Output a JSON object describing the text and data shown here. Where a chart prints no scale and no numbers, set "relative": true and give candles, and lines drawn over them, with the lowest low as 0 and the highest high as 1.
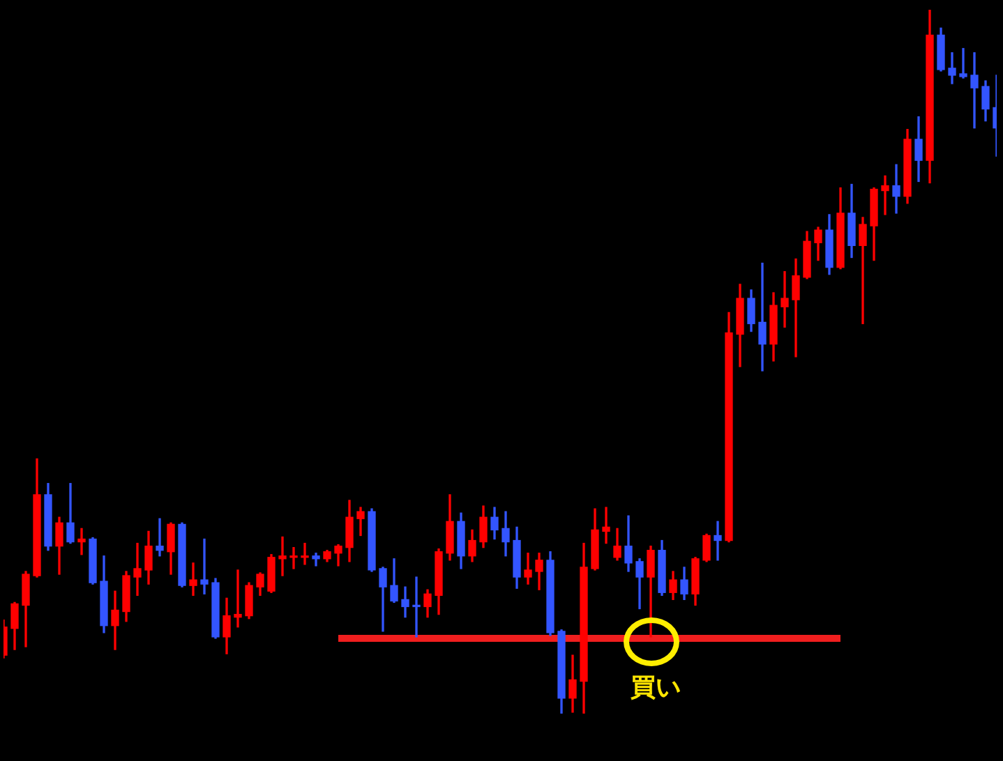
{
  "chart_data": {
    "type": "candlestick",
    "relative": true,
    "categories": [
      null,
      null,
      null,
      null,
      null,
      null,
      null,
      null,
      null,
      null,
      null,
      null,
      null,
      null,
      null,
      null,
      null,
      null,
      null,
      null,
      null,
      null,
      null,
      null,
      null,
      null,
      null,
      null,
      null,
      null,
      null,
      null,
      null,
      null,
      null,
      null,
      null,
      null,
      null,
      null,
      null,
      null,
      null,
      null,
      null,
      null,
      null,
      null,
      null,
      null,
      null,
      null,
      null,
      null,
      null,
      null,
      null,
      null,
      null,
      null,
      null,
      null,
      null,
      null,
      null,
      null,
      null,
      null,
      null,
      null,
      null,
      null,
      null,
      null,
      null,
      null,
      null,
      null,
      null,
      null,
      null,
      null,
      null,
      null,
      null,
      null,
      null,
      null,
      null,
      null
    ],
    "ohlc": [
      [
        0.083,
        0.133,
        0.079,
        0.123
      ],
      [
        0.121,
        0.158,
        0.091,
        0.156
      ],
      [
        0.154,
        0.202,
        0.095,
        0.198
      ],
      [
        0.196,
        0.362,
        0.194,
        0.311
      ],
      [
        0.311,
        0.327,
        0.232,
        0.238
      ],
      [
        0.238,
        0.279,
        0.198,
        0.271
      ],
      [
        0.271,
        0.327,
        0.242,
        0.244
      ],
      [
        0.244,
        0.263,
        0.226,
        0.248
      ],
      [
        0.248,
        0.25,
        0.184,
        0.186
      ],
      [
        0.188,
        0.224,
        0.115,
        0.125
      ],
      [
        0.125,
        0.174,
        0.091,
        0.147
      ],
      [
        0.145,
        0.202,
        0.131,
        0.196
      ],
      [
        0.194,
        0.242,
        0.168,
        0.206
      ],
      [
        0.204,
        0.259,
        0.184,
        0.238
      ],
      [
        0.238,
        0.277,
        0.224,
        0.232
      ],
      [
        0.23,
        0.271,
        0.198,
        0.269
      ],
      [
        0.269,
        0.271,
        0.18,
        0.182
      ],
      [
        0.182,
        0.214,
        0.168,
        0.19
      ],
      [
        0.19,
        0.248,
        0.17,
        0.184
      ],
      [
        0.186,
        0.192,
        0.107,
        0.109
      ],
      [
        0.109,
        0.164,
        0.085,
        0.139
      ],
      [
        0.137,
        0.204,
        0.123,
        0.141
      ],
      [
        0.139,
        0.186,
        0.135,
        0.182
      ],
      [
        0.18,
        0.2,
        0.168,
        0.198
      ],
      [
        0.174,
        0.226,
        0.172,
        0.222
      ],
      [
        0.22,
        0.251,
        0.196,
        0.224
      ],
      [
        0.222,
        0.236,
        0.206,
        0.224
      ],
      [
        0.222,
        0.242,
        0.212,
        0.224
      ],
      [
        0.224,
        0.228,
        0.21,
        0.22
      ],
      [
        0.22,
        0.232,
        0.216,
        0.23
      ],
      [
        0.228,
        0.24,
        0.21,
        0.238
      ],
      [
        0.236,
        0.303,
        0.216,
        0.279
      ],
      [
        0.277,
        0.293,
        0.253,
        0.287
      ],
      [
        0.287,
        0.291,
        0.202,
        0.204
      ],
      [
        0.206,
        0.208,
        0.117,
        0.18
      ],
      [
        0.182,
        0.22,
        0.158,
        0.16
      ],
      [
        0.162,
        0.18,
        0.137,
        0.152
      ],
      [
        0.154,
        0.194,
        0.109,
        0.152
      ],
      [
        0.152,
        0.176,
        0.137,
        0.17
      ],
      [
        0.168,
        0.234,
        0.141,
        0.23
      ],
      [
        0.228,
        0.311,
        0.218,
        0.273
      ],
      [
        0.273,
        0.285,
        0.206,
        0.224
      ],
      [
        0.224,
        0.261,
        0.216,
        0.246
      ],
      [
        0.244,
        0.295,
        0.236,
        0.279
      ],
      [
        0.279,
        0.293,
        0.248,
        0.261
      ],
      [
        0.263,
        0.287,
        0.224,
        0.244
      ],
      [
        0.246,
        0.265,
        0.178,
        0.194
      ],
      [
        0.194,
        0.228,
        0.184,
        0.204
      ],
      [
        0.202,
        0.228,
        0.176,
        0.218
      ],
      [
        0.218,
        0.23,
        0.111,
        0.115
      ],
      [
        0.117,
        0.119,
        0,
        0.022
      ],
      [
        0.022,
        0.083,
        0.002,
        0.048
      ],
      [
        0.046,
        0.242,
        0,
        0.208
      ],
      [
        0.206,
        0.291,
        0.204,
        0.261
      ],
      [
        0.259,
        0.293,
        0.242,
        0.265
      ],
      [
        0.222,
        0.263,
        0.218,
        0.238
      ],
      [
        0.238,
        0.281,
        0.202,
        0.214
      ],
      [
        0.216,
        0.22,
        0.149,
        0.194
      ],
      [
        0.194,
        0.238,
        0.109,
        0.232
      ],
      [
        0.232,
        0.246,
        0.168,
        0.172
      ],
      [
        0.172,
        0.202,
        0.162,
        0.19
      ],
      [
        0.19,
        0.208,
        0.162,
        0.17
      ],
      [
        0.17,
        0.222,
        0.154,
        0.22
      ],
      [
        0.218,
        0.255,
        0.216,
        0.253
      ],
      [
        0.253,
        0.273,
        0.218,
        0.246
      ],
      [
        0.246,
        0.57,
        0.244,
        0.541
      ],
      [
        0.539,
        0.61,
        0.493,
        0.59
      ],
      [
        0.59,
        0.602,
        0.543,
        0.554
      ],
      [
        0.556,
        0.64,
        0.487,
        0.525
      ],
      [
        0.525,
        0.598,
        0.501,
        0.58
      ],
      [
        0.578,
        0.628,
        0.549,
        0.59
      ],
      [
        0.588,
        0.646,
        0.507,
        0.622
      ],
      [
        0.62,
        0.685,
        0.618,
        0.671
      ],
      [
        0.669,
        0.691,
        0.644,
        0.687
      ],
      [
        0.687,
        0.709,
        0.624,
        0.634
      ],
      [
        0.634,
        0.747,
        0.632,
        0.711
      ],
      [
        0.711,
        0.752,
        0.648,
        0.665
      ],
      [
        0.665,
        0.705,
        0.554,
        0.695
      ],
      [
        0.693,
        0.747,
        0.644,
        0.745
      ],
      [
        0.743,
        0.764,
        0.709,
        0.75
      ],
      [
        0.75,
        0.78,
        0.711,
        0.735
      ],
      [
        0.735,
        0.83,
        0.725,
        0.816
      ],
      [
        0.816,
        0.848,
        0.756,
        0.786
      ],
      [
        0.786,
        1,
        0.754,
        0.964
      ],
      [
        0.964,
        0.974,
        0.913,
        0.915
      ],
      [
        0.917,
        0.939,
        0.895,
        0.907
      ],
      [
        0.909,
        0.945,
        0.903,
        0.905
      ],
      [
        0.907,
        0.939,
        0.832,
        0.889
      ],
      [
        0.891,
        0.899,
        0.842,
        0.859
      ],
      [
        0.861,
        0.907,
        0.792,
        0.832
      ]
    ],
    "colors": [
      "#ff0000",
      "#ff0000",
      "#ff0000",
      "#ff0000",
      "#3355ff",
      "#ff0000",
      "#3355ff",
      "#ff0000",
      "#3355ff",
      "#3355ff",
      "#ff0000",
      "#ff0000",
      "#ff0000",
      "#ff0000",
      "#3355ff",
      "#ff0000",
      "#3355ff",
      "#ff0000",
      "#3355ff",
      "#3355ff",
      "#ff0000",
      "#ff0000",
      "#ff0000",
      "#ff0000",
      "#ff0000",
      "#ff0000",
      "#ff0000",
      "#ff0000",
      "#3355ff",
      "#ff0000",
      "#ff0000",
      "#ff0000",
      "#ff0000",
      "#3355ff",
      "#3355ff",
      "#3355ff",
      "#3355ff",
      "#3355ff",
      "#ff0000",
      "#ff0000",
      "#ff0000",
      "#3355ff",
      "#ff0000",
      "#ff0000",
      "#3355ff",
      "#3355ff",
      "#3355ff",
      "#ff0000",
      "#ff0000",
      "#3355ff",
      "#3355ff",
      "#ff0000",
      "#ff0000",
      "#ff0000",
      "#ff0000",
      "#ff0000",
      "#3355ff",
      "#3355ff",
      "#ff0000",
      "#3355ff",
      "#ff0000",
      "#3355ff",
      "#ff0000",
      "#ff0000",
      "#3355ff",
      "#ff0000",
      "#ff0000",
      "#3355ff",
      "#3355ff",
      "#ff0000",
      "#ff0000",
      "#ff0000",
      "#ff0000",
      "#ff0000",
      "#3355ff",
      "#ff0000",
      "#3355ff",
      "#ff0000",
      "#ff0000",
      "#ff0000",
      "#3355ff",
      "#ff0000",
      "#3355ff",
      "#ff0000",
      "#3355ff",
      "#3355ff",
      "#3355ff",
      "#3355ff",
      "#3355ff",
      "#3355ff"
    ],
    "series": [
      {
        "type": "line",
        "color": "#f01e1e",
        "values": [
          null,
          null,
          null,
          null,
          null,
          null,
          null,
          null,
          null,
          null,
          null,
          null,
          null,
          null,
          null,
          null,
          null,
          null,
          null,
          null,
          null,
          null,
          null,
          null,
          null,
          null,
          null,
          null,
          null,
          null,
          0.107,
          0.107,
          0.107,
          0.107,
          0.107,
          0.107,
          0.107,
          0.107,
          0.107,
          0.107,
          0.107,
          0.107,
          0.107,
          0.107,
          0.107,
          0.107,
          0.107,
          0.107,
          0.107,
          0.107,
          0.107,
          0.107,
          0.107,
          0.107,
          0.107,
          0.107,
          0.107,
          0.107,
          0.107,
          0.107,
          0.107,
          0.107,
          0.107,
          0.107,
          0.107,
          0.107,
          0.107,
          0.107,
          0.107,
          0.107,
          0.107,
          0.107,
          0.107,
          0.107,
          0.107,
          0.107,
          null,
          null,
          null,
          null,
          null,
          null,
          null,
          null,
          null,
          null,
          null,
          null,
          null,
          null
        ]
      }
    ],
    "annotations": [
      "買い"
    ]
  }
}
